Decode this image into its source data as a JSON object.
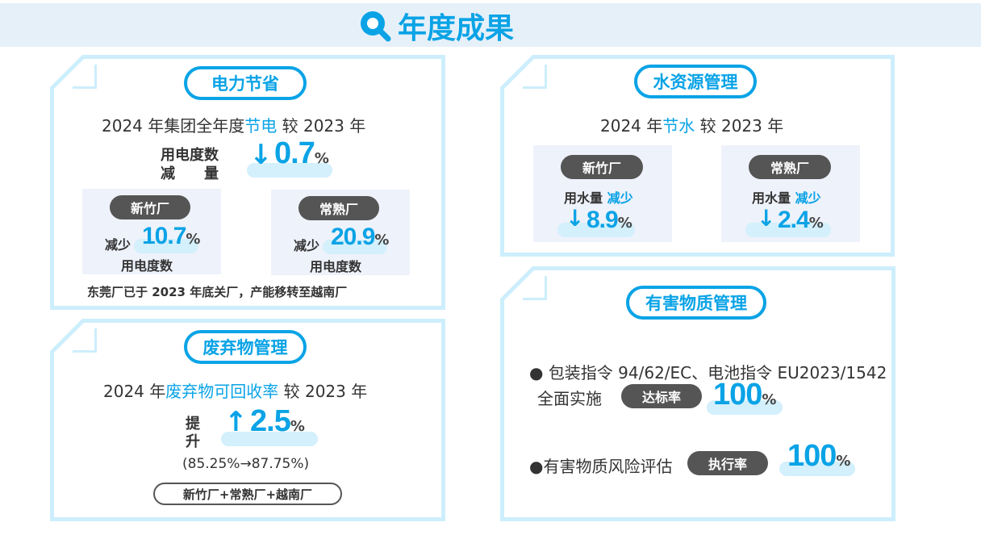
{
  "header": {
    "title": "年度成果",
    "icon": "search-icon"
  },
  "power": {
    "title": "电力节省",
    "line_a": "2024 年集团全年度",
    "line_hl": "节电",
    "line_b": " 较 2023 年",
    "label1": "用电度数",
    "label2": "减　　量",
    "arrow": "down",
    "value": "0.7",
    "unit": "%",
    "plants": [
      {
        "name": "新竹厂",
        "prefix": "减少",
        "value": "10.7",
        "unit": "%",
        "label": "用电度数"
      },
      {
        "name": "常熟厂",
        "prefix": "减少",
        "value": "20.9",
        "unit": "%",
        "label": "用电度数"
      }
    ],
    "note": "东莞厂已于 2023 年底关厂，产能移转至越南厂"
  },
  "waste": {
    "title": "废弃物管理",
    "line_a": "2024 年",
    "line_hl": "废弃物可回收率",
    "line_b": " 较 2023 年",
    "label1": "提",
    "label2": "升",
    "arrow": "up",
    "value": "2.5",
    "unit": "%",
    "range": "(85.25%→87.75%)",
    "scope": "新竹厂+常熟厂+越南厂"
  },
  "water": {
    "title": "水资源管理",
    "line_a": "2024 年",
    "line_hl": "节水",
    "line_b": " 较 2023 年",
    "plants": [
      {
        "name": "新竹厂",
        "label": "用水量",
        "hl": "减少",
        "value": "8.9",
        "unit": "%"
      },
      {
        "name": "常熟厂",
        "label": "用水量",
        "hl": "减少",
        "value": "2.4",
        "unit": "%"
      }
    ]
  },
  "hazard": {
    "title": "有害物质管理",
    "item1_line1": "包装指令 94/62/EC、电池指令 EU2023/1542",
    "item1_line2": "全面实施",
    "item1_badge": "达标率",
    "item1_value": "100",
    "item1_unit": "%",
    "item2_text": "有害物质风险评估",
    "item2_badge": "执行率",
    "item2_value": "100",
    "item2_unit": "%"
  },
  "colors": {
    "accent": "#0aa3e6",
    "border": "#cdeefc",
    "badge": "#555555",
    "card": "#eef2fa"
  }
}
